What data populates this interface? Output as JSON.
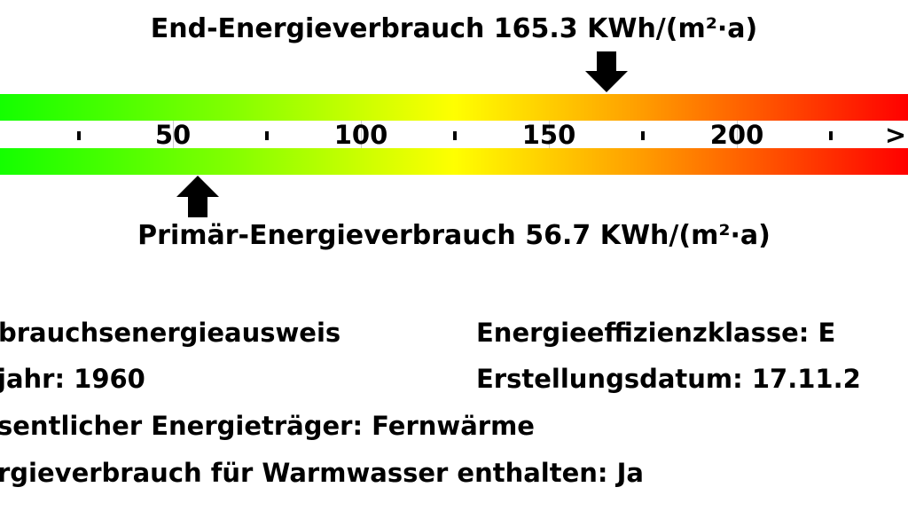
{
  "chart_data": {
    "type": "scale",
    "axis": {
      "min": 0,
      "max": 240,
      "tick_labels": [
        50,
        100,
        150,
        200
      ],
      "minor_ticks": [
        25,
        75,
        125,
        175,
        225
      ],
      "overflow_label": ">"
    },
    "gradient_colors": [
      "#14ff00",
      "#ffff00",
      "#ff0000"
    ],
    "end_energy": {
      "label": "End-Energieverbrauch 165.3 KWh/(m²·a)",
      "value": 165.3
    },
    "primary_energy": {
      "label": "Primär-Energieverbrauch 56.7 KWh/(m²·a)",
      "value": 56.7
    }
  },
  "info": {
    "left": [
      "brauchsenergieausweis",
      "jahr: 1960",
      "sentlicher Energieträger: Fernwärme",
      "rgieverbrauch für Warmwasser enthalten: Ja"
    ],
    "right": [
      "Energieeffizienzklasse: E",
      "Erstellungsdatum: 17.11.2"
    ]
  }
}
